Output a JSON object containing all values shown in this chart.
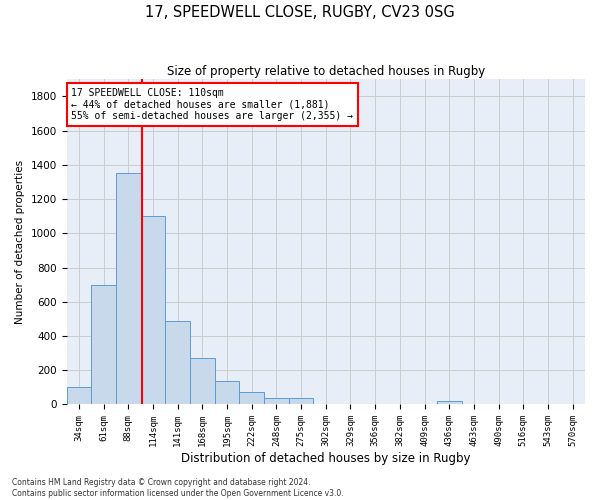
{
  "title_line1": "17, SPEEDWELL CLOSE, RUGBY, CV23 0SG",
  "title_line2": "Size of property relative to detached houses in Rugby",
  "xlabel": "Distribution of detached houses by size in Rugby",
  "ylabel": "Number of detached properties",
  "bar_labels": [
    "34sqm",
    "61sqm",
    "88sqm",
    "114sqm",
    "141sqm",
    "168sqm",
    "195sqm",
    "222sqm",
    "248sqm",
    "275sqm",
    "302sqm",
    "329sqm",
    "356sqm",
    "382sqm",
    "409sqm",
    "436sqm",
    "463sqm",
    "490sqm",
    "516sqm",
    "543sqm",
    "570sqm"
  ],
  "bar_values": [
    100,
    700,
    1350,
    1100,
    490,
    270,
    140,
    70,
    35,
    35,
    0,
    0,
    0,
    0,
    0,
    20,
    0,
    0,
    0,
    0,
    0
  ],
  "bar_color": "#c9d9ec",
  "bar_edge_color": "#5b9bd5",
  "vline_color": "red",
  "vline_pos": 2.57,
  "annotation_text": "17 SPEEDWELL CLOSE: 110sqm\n← 44% of detached houses are smaller (1,881)\n55% of semi-detached houses are larger (2,355) →",
  "annotation_box_color": "white",
  "annotation_box_edge_color": "red",
  "ylim": [
    0,
    1900
  ],
  "yticks": [
    0,
    200,
    400,
    600,
    800,
    1000,
    1200,
    1400,
    1600,
    1800
  ],
  "grid_color": "#cccccc",
  "footer_line1": "Contains HM Land Registry data © Crown copyright and database right 2024.",
  "footer_line2": "Contains public sector information licensed under the Open Government Licence v3.0.",
  "fig_width": 6.0,
  "fig_height": 5.0,
  "bg_color": "#e8eef8"
}
